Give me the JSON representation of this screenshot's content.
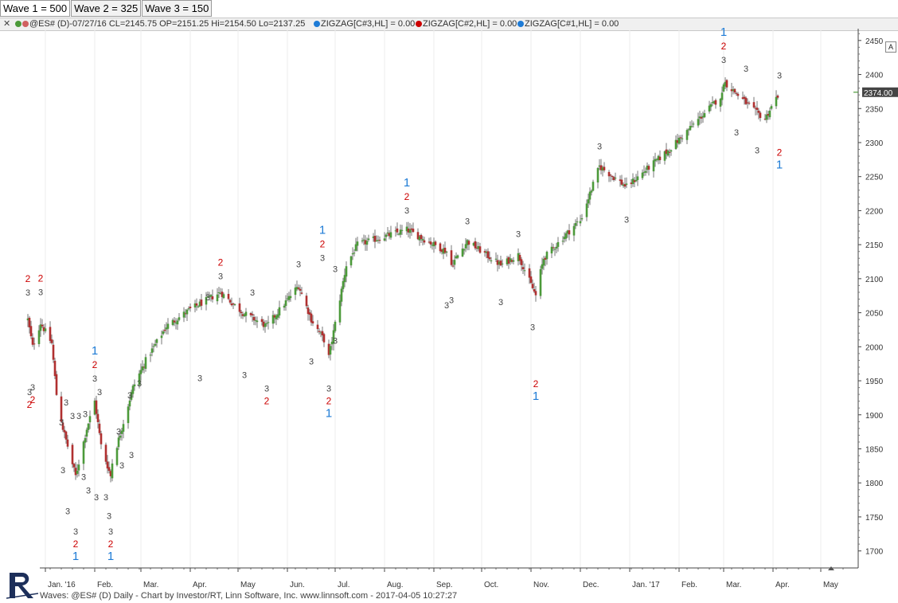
{
  "tabs": [
    {
      "label": "Wave 1 = 500"
    },
    {
      "label": "Wave 2 = 325"
    },
    {
      "label": "Wave 3 = 150"
    }
  ],
  "header": {
    "symbol_info": "@ES# (D)-07/27/16 CL=2145.75 OP=2151.25 Hi=2154.50 Lo=2137.25",
    "legends": [
      {
        "label": "ZIGZAG[C#3,HL] = 0.00",
        "color": "#1e7bd6"
      },
      {
        "label": "ZIGZAG[C#2,HL] = 0.00",
        "color": "#cc0000"
      },
      {
        "label": "ZIGZAG[C#1,HL] = 0.00",
        "color": "#1e7bd6"
      }
    ]
  },
  "auto_button": "A",
  "footer": "Waves: @ES# (D) Daily - Chart by Investor/RT, Linn Software, Inc. www.linnsoft.com - 2017-04-05 10:27:27",
  "colors": {
    "up": "#4c9a3a",
    "down": "#b03030",
    "wick": "#555555",
    "grid": "#ececec",
    "wave1": "#1e7bd6",
    "wave2": "#cc0000",
    "wave3": "#444444",
    "price_tag": "#444444"
  },
  "chart_data": {
    "type": "candlestick",
    "ylim": [
      1675,
      2465
    ],
    "y_ticks": [
      1700,
      1750,
      1800,
      1850,
      1900,
      1950,
      2000,
      2050,
      2100,
      2150,
      2200,
      2250,
      2300,
      2350,
      2400,
      2450
    ],
    "x_ticks": [
      "Jan. '16",
      "Feb.",
      "Mar.",
      "Apr.",
      "May",
      "Jun.",
      "Jul.",
      "Aug.",
      "Sep.",
      "Oct.",
      "Nov.",
      "Dec.",
      "Jan. '17",
      "Feb.",
      "Mar.",
      "Apr.",
      "May"
    ],
    "current_price": "2374.00",
    "price_path": [
      [
        "2015-12-21",
        2040
      ],
      [
        "2015-12-24",
        2000
      ],
      [
        "2015-12-29",
        2035
      ],
      [
        "2016-01-05",
        2005
      ],
      [
        "2016-01-08",
        1930
      ],
      [
        "2016-01-12",
        1880
      ],
      [
        "2016-01-20",
        1810
      ],
      [
        "2016-01-27",
        1880
      ],
      [
        "2016-02-01",
        1920
      ],
      [
        "2016-02-05",
        1855
      ],
      [
        "2016-02-11",
        1810
      ],
      [
        "2016-02-12",
        1830
      ],
      [
        "2016-02-25",
        1940
      ],
      [
        "2016-03-04",
        1980
      ],
      [
        "2016-03-17",
        2030
      ],
      [
        "2016-04-01",
        2055
      ],
      [
        "2016-04-20",
        2080
      ],
      [
        "2016-05-04",
        2050
      ],
      [
        "2016-05-19",
        2030
      ],
      [
        "2016-06-08",
        2090
      ],
      [
        "2016-06-16",
        2040
      ],
      [
        "2016-06-24",
        2010
      ],
      [
        "2016-06-27",
        1985
      ],
      [
        "2016-07-08",
        2120
      ],
      [
        "2016-07-15",
        2150
      ],
      [
        "2016-08-15",
        2172
      ],
      [
        "2016-09-09",
        2140
      ],
      [
        "2016-09-12",
        2120
      ],
      [
        "2016-09-22",
        2155
      ],
      [
        "2016-10-13",
        2120
      ],
      [
        "2016-10-24",
        2135
      ],
      [
        "2016-11-04",
        2075
      ],
      [
        "2016-11-07",
        2110
      ],
      [
        "2016-11-09",
        2130
      ],
      [
        "2016-12-01",
        2185
      ],
      [
        "2016-12-13",
        2265
      ],
      [
        "2016-12-30",
        2235
      ],
      [
        "2017-01-26",
        2290
      ],
      [
        "2017-02-28",
        2370
      ],
      [
        "2017-03-01",
        2390
      ],
      [
        "2017-03-21",
        2345
      ],
      [
        "2017-03-27",
        2335
      ],
      [
        "2017-04-05",
        2374
      ]
    ],
    "wave_labels": [
      {
        "date": "2015-12-21",
        "price": 2061,
        "level": 3,
        "text": "3",
        "place": "above"
      },
      {
        "date": "2015-12-21",
        "price": 2061,
        "level": 2,
        "text": "2",
        "place": "above"
      },
      {
        "date": "2015-12-22",
        "price": 1955,
        "level": 3,
        "text": "3",
        "place": "below"
      },
      {
        "date": "2015-12-22",
        "price": 1955,
        "level": 2,
        "text": "2",
        "place": "below"
      },
      {
        "date": "2015-12-24",
        "price": 1962,
        "level": 3,
        "text": "3",
        "place": "below"
      },
      {
        "date": "2015-12-24",
        "price": 1962,
        "level": 2,
        "text": "2",
        "place": "below"
      },
      {
        "date": "2015-12-29",
        "price": 2062,
        "level": 3,
        "text": "3",
        "place": "above"
      },
      {
        "date": "2015-12-29",
        "price": 2062,
        "level": 2,
        "text": "2",
        "place": "above"
      },
      {
        "date": "2016-01-11",
        "price": 1910,
        "level": 3,
        "text": "3",
        "place": "below"
      },
      {
        "date": "2016-01-12",
        "price": 1840,
        "level": 3,
        "text": "3",
        "place": "below"
      },
      {
        "date": "2016-01-14",
        "price": 1900,
        "level": 3,
        "text": "3",
        "place": "above"
      },
      {
        "date": "2016-01-15",
        "price": 1780,
        "level": 3,
        "text": "3",
        "place": "below"
      },
      {
        "date": "2016-01-18",
        "price": 1880,
        "level": 3,
        "text": "3",
        "place": "above"
      },
      {
        "date": "2016-01-20",
        "price": 1750,
        "level": 3,
        "text": "3",
        "place": "below"
      },
      {
        "date": "2016-01-20",
        "price": 1750,
        "level": 2,
        "text": "2",
        "place": "below"
      },
      {
        "date": "2016-01-20",
        "price": 1750,
        "level": 1,
        "text": "1",
        "place": "below"
      },
      {
        "date": "2016-01-22",
        "price": 1880,
        "level": 3,
        "text": "3",
        "place": "above"
      },
      {
        "date": "2016-01-25",
        "price": 1830,
        "level": 3,
        "text": "3",
        "place": "below"
      },
      {
        "date": "2016-01-26",
        "price": 1883,
        "level": 3,
        "text": "3",
        "place": "above"
      },
      {
        "date": "2016-01-28",
        "price": 1810,
        "level": 3,
        "text": "3",
        "place": "below"
      },
      {
        "date": "2016-02-01",
        "price": 1935,
        "level": 3,
        "text": "3",
        "place": "above"
      },
      {
        "date": "2016-02-01",
        "price": 1935,
        "level": 2,
        "text": "2",
        "place": "above"
      },
      {
        "date": "2016-02-01",
        "price": 1935,
        "level": 1,
        "text": "1",
        "place": "above"
      },
      {
        "date": "2016-02-02",
        "price": 1800,
        "level": 3,
        "text": "3",
        "place": "below"
      },
      {
        "date": "2016-02-04",
        "price": 1915,
        "level": 3,
        "text": "3",
        "place": "above"
      },
      {
        "date": "2016-02-08",
        "price": 1800,
        "level": 3,
        "text": "3",
        "place": "below"
      },
      {
        "date": "2016-02-10",
        "price": 1773,
        "level": 3,
        "text": "3",
        "place": "below"
      },
      {
        "date": "2016-02-11",
        "price": 1750,
        "level": 3,
        "text": "3",
        "place": "below"
      },
      {
        "date": "2016-02-11",
        "price": 1750,
        "level": 2,
        "text": "2",
        "place": "below"
      },
      {
        "date": "2016-02-11",
        "price": 1750,
        "level": 1,
        "text": "1",
        "place": "below"
      },
      {
        "date": "2016-02-16",
        "price": 1857,
        "level": 3,
        "text": "3",
        "place": "above"
      },
      {
        "date": "2016-02-18",
        "price": 1847,
        "level": 3,
        "text": "3",
        "place": "below"
      },
      {
        "date": "2016-02-23",
        "price": 1910,
        "level": 3,
        "text": "3",
        "place": "above"
      },
      {
        "date": "2016-02-24",
        "price": 1862,
        "level": 3,
        "text": "3",
        "place": "below"
      },
      {
        "date": "2016-02-29",
        "price": 1928,
        "level": 3,
        "text": "3",
        "place": "above"
      },
      {
        "date": "2016-04-12",
        "price": 2054,
        "level": 3,
        "text": "3",
        "place": "above"
      },
      {
        "date": "2016-04-07",
        "price": 1975,
        "level": 3,
        "text": "3",
        "place": "below"
      },
      {
        "date": "2016-04-20",
        "price": 2085,
        "level": 3,
        "text": "3",
        "place": "above"
      },
      {
        "date": "2016-04-20",
        "price": 2085,
        "level": 2,
        "text": "2",
        "place": "above"
      },
      {
        "date": "2016-05-05",
        "price": 1980,
        "level": 3,
        "text": "3",
        "place": "below"
      },
      {
        "date": "2016-05-10",
        "price": 2061,
        "level": 3,
        "text": "3",
        "place": "above"
      },
      {
        "date": "2016-05-19",
        "price": 1960,
        "level": 3,
        "text": "3",
        "place": "below"
      },
      {
        "date": "2016-05-19",
        "price": 1960,
        "level": 2,
        "text": "2",
        "place": "below"
      },
      {
        "date": "2016-06-08",
        "price": 2103,
        "level": 3,
        "text": "3",
        "place": "above"
      },
      {
        "date": "2016-06-16",
        "price": 2000,
        "level": 3,
        "text": "3",
        "place": "below"
      },
      {
        "date": "2016-06-23",
        "price": 2112,
        "level": 3,
        "text": "3",
        "place": "above"
      },
      {
        "date": "2016-06-23",
        "price": 2112,
        "level": 2,
        "text": "2",
        "place": "above"
      },
      {
        "date": "2016-06-23",
        "price": 2112,
        "level": 1,
        "text": "1",
        "place": "above"
      },
      {
        "date": "2016-06-27",
        "price": 1960,
        "level": 3,
        "text": "3",
        "place": "below"
      },
      {
        "date": "2016-06-27",
        "price": 1960,
        "level": 2,
        "text": "2",
        "place": "below"
      },
      {
        "date": "2016-06-27",
        "price": 1960,
        "level": 1,
        "text": "1",
        "place": "below"
      },
      {
        "date": "2016-07-01",
        "price": 2030,
        "level": 3,
        "text": "3",
        "place": "below"
      },
      {
        "date": "2016-07-01",
        "price": 2096,
        "level": 3,
        "text": "3",
        "place": "above"
      },
      {
        "date": "2016-08-15",
        "price": 2182,
        "level": 3,
        "text": "3",
        "place": "above"
      },
      {
        "date": "2016-08-15",
        "price": 2182,
        "level": 2,
        "text": "2",
        "place": "above"
      },
      {
        "date": "2016-08-15",
        "price": 2182,
        "level": 1,
        "text": "1",
        "place": "above"
      },
      {
        "date": "2016-09-09",
        "price": 2082,
        "level": 3,
        "text": "3",
        "place": "below"
      },
      {
        "date": "2016-09-12",
        "price": 2090,
        "level": 3,
        "text": "3",
        "place": "below"
      },
      {
        "date": "2016-09-22",
        "price": 2166,
        "level": 3,
        "text": "3",
        "place": "above"
      },
      {
        "date": "2016-10-13",
        "price": 2087,
        "level": 3,
        "text": "3",
        "place": "below"
      },
      {
        "date": "2016-10-24",
        "price": 2147,
        "level": 3,
        "text": "3",
        "place": "above"
      },
      {
        "date": "2016-11-02",
        "price": 2050,
        "level": 3,
        "text": "3",
        "place": "below"
      },
      {
        "date": "2016-11-04",
        "price": 1985,
        "level": 2,
        "text": "2",
        "place": "below"
      },
      {
        "date": "2016-11-04",
        "price": 1985,
        "level": 1,
        "text": "1",
        "place": "below"
      },
      {
        "date": "2016-12-13",
        "price": 2276,
        "level": 3,
        "text": "3",
        "place": "above"
      },
      {
        "date": "2016-12-30",
        "price": 2208,
        "level": 3,
        "text": "3",
        "place": "below"
      },
      {
        "date": "2017-03-01",
        "price": 2403,
        "level": 3,
        "text": "3",
        "place": "above"
      },
      {
        "date": "2017-03-01",
        "price": 2403,
        "level": 2,
        "text": "2",
        "place": "above"
      },
      {
        "date": "2017-03-01",
        "price": 2403,
        "level": 1,
        "text": "1",
        "place": "above"
      },
      {
        "date": "2017-03-09",
        "price": 2336,
        "level": 3,
        "text": "3",
        "place": "below"
      },
      {
        "date": "2017-03-15",
        "price": 2390,
        "level": 3,
        "text": "3",
        "place": "above"
      },
      {
        "date": "2017-03-22",
        "price": 2310,
        "level": 3,
        "text": "3",
        "place": "below"
      },
      {
        "date": "2017-04-05",
        "price": 2380,
        "level": 3,
        "text": "3",
        "place": "above"
      },
      {
        "date": "2017-04-05",
        "price": 2325,
        "level": 2,
        "text": "2",
        "place": "below"
      },
      {
        "date": "2017-04-05",
        "price": 2325,
        "level": 1,
        "text": "1",
        "place": "below"
      }
    ]
  }
}
